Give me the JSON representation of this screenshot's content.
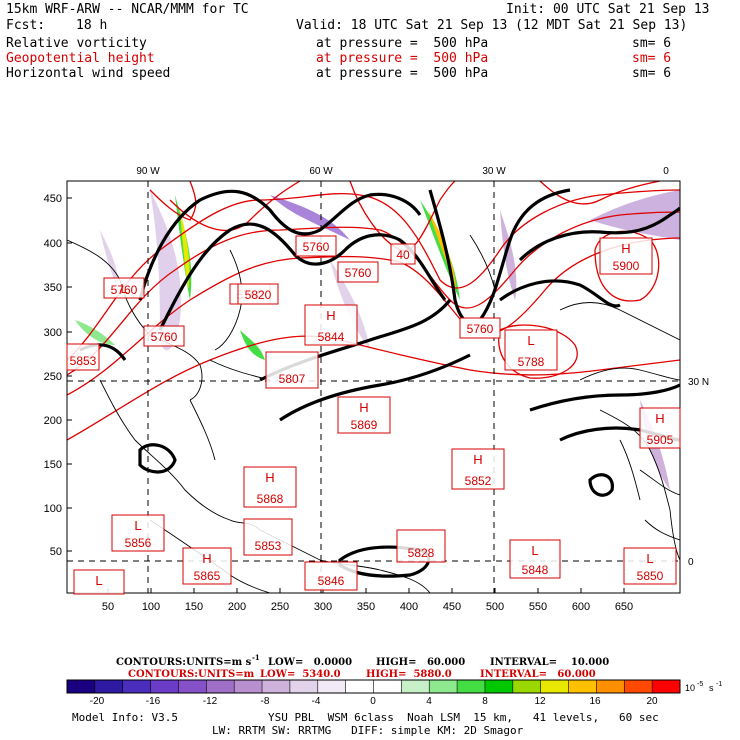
{
  "header": {
    "model": "15km WRF-ARW -- NCAR/MMM for TC",
    "init": "Init: 00 UTC Sat 21 Sep 13",
    "fcst_label": "Fcst:",
    "fcst_value": "18 h",
    "valid": "Valid: 18 UTC Sat 21 Sep 13 (12 MDT Sat 21 Sep 13)",
    "fields": [
      {
        "name": "Relative vorticity",
        "level": "at pressure =  500 hPa",
        "sm": "sm= 6",
        "color": "#000000"
      },
      {
        "name": "Geopotential height",
        "level": "at pressure =  500 hPa",
        "sm": "sm= 6",
        "color": "#d40000"
      },
      {
        "name": "Horizontal wind speed",
        "level": "at pressure =  500 hPa",
        "sm": "sm= 6",
        "color": "#000000"
      }
    ]
  },
  "map": {
    "top_longitudes": [
      "90 W",
      "60 W",
      "30 W",
      "0"
    ],
    "right_latitudes": [
      "30 N",
      "0"
    ],
    "x_ticks": [
      "50",
      "100",
      "150",
      "200",
      "250",
      "300",
      "350",
      "400",
      "450",
      "500",
      "550",
      "600",
      "650"
    ],
    "y_ticks": [
      "50",
      "100",
      "150",
      "200",
      "250",
      "300",
      "350",
      "400",
      "450"
    ],
    "height_labels": [
      {
        "kind": "L",
        "value": "5760"
      },
      {
        "kind": "",
        "value": "5760"
      },
      {
        "kind": "",
        "value": "5760"
      },
      {
        "kind": "",
        "value": "5760"
      },
      {
        "kind": "",
        "value": "5760"
      },
      {
        "kind": "",
        "value": "5760"
      },
      {
        "kind": "H",
        "value": "5900"
      },
      {
        "kind": "H",
        "value": "5844"
      },
      {
        "kind": "",
        "value": "5760"
      },
      {
        "kind": "L",
        "value": "5788"
      },
      {
        "kind": "",
        "value": "5853"
      },
      {
        "kind": "",
        "value": "5807"
      },
      {
        "kind": "H",
        "value": "5869"
      },
      {
        "kind": "H",
        "value": "5905"
      },
      {
        "kind": "H",
        "value": "5852"
      },
      {
        "kind": "H",
        "value": "5868"
      },
      {
        "kind": "L",
        "value": "5856"
      },
      {
        "kind": "",
        "value": "5853"
      },
      {
        "kind": "H",
        "value": "5865"
      },
      {
        "kind": "",
        "value": "5846"
      },
      {
        "kind": "",
        "value": "5828"
      },
      {
        "kind": "L",
        "value": "5848"
      },
      {
        "kind": "L",
        "value": "5850"
      },
      {
        "kind": "L",
        "value": ""
      },
      {
        "kind": "",
        "value": "40"
      },
      {
        "kind": "",
        "value": "5820"
      }
    ]
  },
  "contours_black": {
    "prefix": "CONTOURS:",
    "units": "UNITS=m s",
    "units_sup": "-1",
    "low": "LOW=   0.0000",
    "high": "HIGH=   60.000",
    "interval": "INTERVAL=    10.000"
  },
  "contours_red": {
    "prefix": "CONTOURS:",
    "units": "UNITS=m",
    "low": "LOW=  5340.0",
    "high": "HIGH=  5880.0",
    "interval": "INTERVAL=   60.000"
  },
  "colorbar": {
    "labels": [
      "-20",
      "-16",
      "-12",
      "-8",
      "-4",
      "0",
      "4",
      "8",
      "12",
      "16",
      "20"
    ],
    "units": "10",
    "units_sup": "-5",
    "units_tail": "s",
    "units_tail_sup": "-1",
    "colors": [
      "#1a0080",
      "#2d1aa0",
      "#4b2dbc",
      "#6a3cc8",
      "#8550c8",
      "#a070c8",
      "#b890d0",
      "#cfb2dc",
      "#e3d3ea",
      "#f2eaf6",
      "#ffffff",
      "#ffffff",
      "#c8f0c8",
      "#8ee88e",
      "#44dd44",
      "#00c800",
      "#9ad800",
      "#e8e800",
      "#ffc000",
      "#ff9000",
      "#ff4800",
      "#ff0000"
    ]
  },
  "footer": {
    "model_info": "Model Info: V3.5",
    "physics_line1": "YSU PBL  WSM 6class  Noah LSM  15 km,   41 levels,   60 sec",
    "physics_line2": "LW: RRTM SW: RRTMG   DIFF: simple KM: 2D Smagor"
  }
}
